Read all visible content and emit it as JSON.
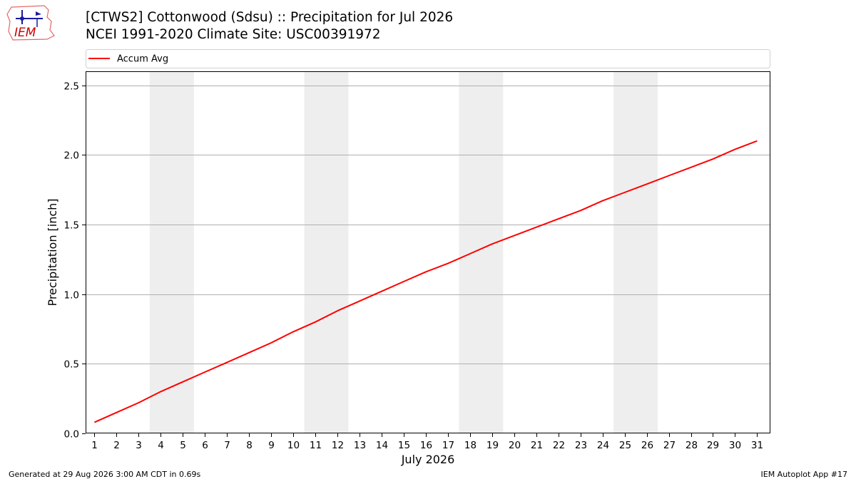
{
  "header": {
    "logo_text": "IEM",
    "title_line1": "[CTWS2] Cottonwood (Sdsu) :: Precipitation for Jul 2026",
    "title_line2": "NCEI 1991-2020 Climate Site: USC00391972"
  },
  "footer": {
    "left": "Generated at 29 Aug 2026 3:00 AM CDT in 0.69s",
    "right": "IEM Autoplot App #17"
  },
  "colors": {
    "series": "#ff0000",
    "weekend_shade": "#eeeeee",
    "grid": "#b0b0b0",
    "axis": "#000000"
  },
  "chart_data": {
    "type": "line",
    "xlabel": "July 2026",
    "ylabel": "Precipitation [inch]",
    "xlim": [
      0.6,
      31.6
    ],
    "ylim": [
      0,
      2.6
    ],
    "grid": "horizontal",
    "legend_placement": "top",
    "x": [
      1,
      2,
      3,
      4,
      5,
      6,
      7,
      8,
      9,
      10,
      11,
      12,
      13,
      14,
      15,
      16,
      17,
      18,
      19,
      20,
      21,
      22,
      23,
      24,
      25,
      26,
      27,
      28,
      29,
      30,
      31
    ],
    "x_tick_labels": [
      "1",
      "2",
      "3",
      "4",
      "5",
      "6",
      "7",
      "8",
      "9",
      "10",
      "11",
      "12",
      "13",
      "14",
      "15",
      "16",
      "17",
      "18",
      "19",
      "20",
      "21",
      "22",
      "23",
      "24",
      "25",
      "26",
      "27",
      "28",
      "29",
      "30",
      "31"
    ],
    "y_ticks": [
      0,
      0.5,
      1.0,
      1.5,
      2.0,
      2.5
    ],
    "y_tick_labels": [
      "0.0",
      "0.5",
      "1.0",
      "1.5",
      "2.0",
      "2.5"
    ],
    "weekend_spans": [
      [
        3.5,
        5.5
      ],
      [
        10.5,
        12.5
      ],
      [
        17.5,
        19.5
      ],
      [
        24.5,
        26.5
      ]
    ],
    "series": [
      {
        "name": "Accum Avg",
        "color": "#ff0000",
        "values": [
          0.08,
          0.15,
          0.22,
          0.3,
          0.37,
          0.44,
          0.51,
          0.58,
          0.65,
          0.73,
          0.8,
          0.88,
          0.95,
          1.02,
          1.09,
          1.16,
          1.22,
          1.29,
          1.36,
          1.42,
          1.48,
          1.54,
          1.6,
          1.67,
          1.73,
          1.79,
          1.85,
          1.91,
          1.97,
          2.04,
          2.1
        ]
      }
    ]
  }
}
